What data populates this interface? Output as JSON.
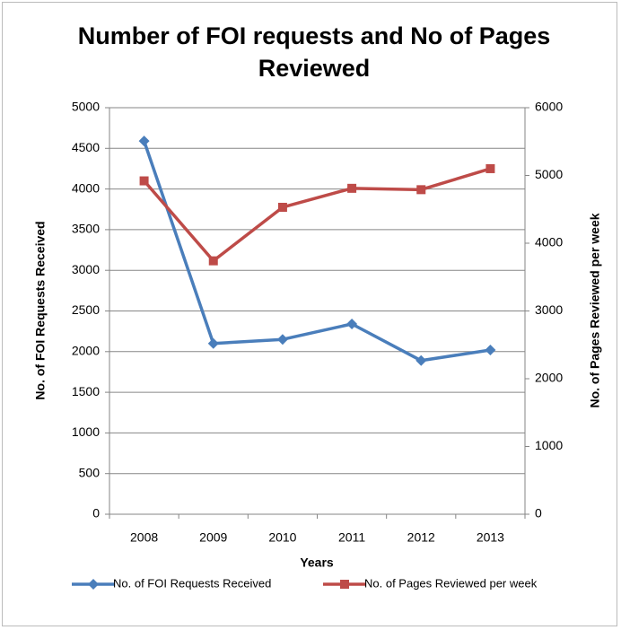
{
  "chart_data": {
    "type": "line",
    "title": "Number of FOI requests and No of Pages Reviewed",
    "x_label": "Years",
    "y_label": "No. of FOI Requests Received",
    "y2_label": "No. of Pages Reviewed per week",
    "categories": [
      "2008",
      "2009",
      "2010",
      "2011",
      "2012",
      "2013"
    ],
    "series": [
      {
        "name": "No. of FOI Requests Received",
        "color": "#4a7ebb",
        "marker": "diamond",
        "values": [
          4590,
          2100,
          2150,
          2340,
          1890,
          2020
        ]
      },
      {
        "name": "No. of Pages Reviewed per week",
        "color": "#be4b48",
        "marker": "square",
        "axis": "y2",
        "values": [
          4920,
          3740,
          4530,
          4810,
          4790,
          5100
        ]
      }
    ],
    "ylim": [
      0,
      5000
    ],
    "yticks": [
      0,
      500,
      1000,
      1500,
      2000,
      2500,
      3000,
      3500,
      4000,
      4500,
      5000
    ],
    "y2lim": [
      0,
      6000
    ],
    "y2ticks": [
      0,
      1000,
      2000,
      3000,
      4000,
      5000,
      6000
    ],
    "grid": true,
    "legend": "bottom"
  }
}
